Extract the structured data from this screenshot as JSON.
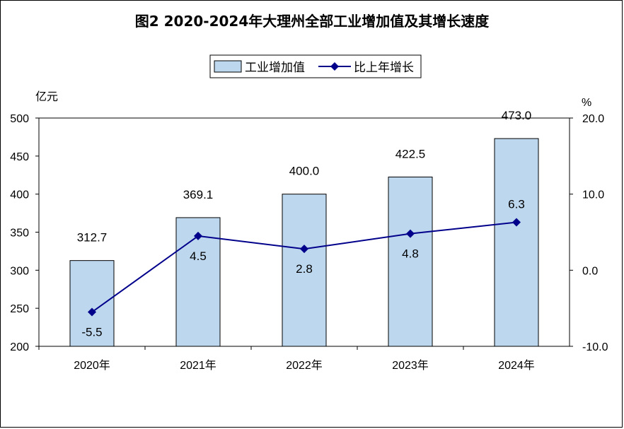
{
  "title": "图2  2020-2024年大理州全部工业增加值及其增长速度",
  "chart_data": {
    "type": "bar",
    "categories": [
      "2020年",
      "2021年",
      "2022年",
      "2023年",
      "2024年"
    ],
    "series": [
      {
        "name": "工业增加值",
        "type": "bar",
        "axis": "left",
        "values": [
          312.7,
          369.1,
          400.0,
          422.5,
          473.0
        ],
        "labels": [
          "312.7",
          "369.1",
          "400.0",
          "422.5",
          "473.0"
        ],
        "color": "#bdd7ee"
      },
      {
        "name": "比上年增长",
        "type": "line",
        "axis": "right",
        "values": [
          -5.5,
          4.5,
          2.8,
          4.8,
          6.3
        ],
        "labels": [
          "-5.5",
          "4.5",
          "2.8",
          "4.8",
          "6.3"
        ],
        "color": "#00008b"
      }
    ],
    "y_left": {
      "unit": "亿元",
      "ylim": [
        200,
        500
      ],
      "ticks": [
        "200",
        "250",
        "300",
        "350",
        "400",
        "450",
        "500"
      ]
    },
    "y_right": {
      "unit": "%",
      "ylim": [
        -10,
        20
      ],
      "ticks": [
        "-10.0",
        "0.0",
        "10.0",
        "20.0"
      ]
    },
    "legend_position": "top-center",
    "grid": false
  }
}
